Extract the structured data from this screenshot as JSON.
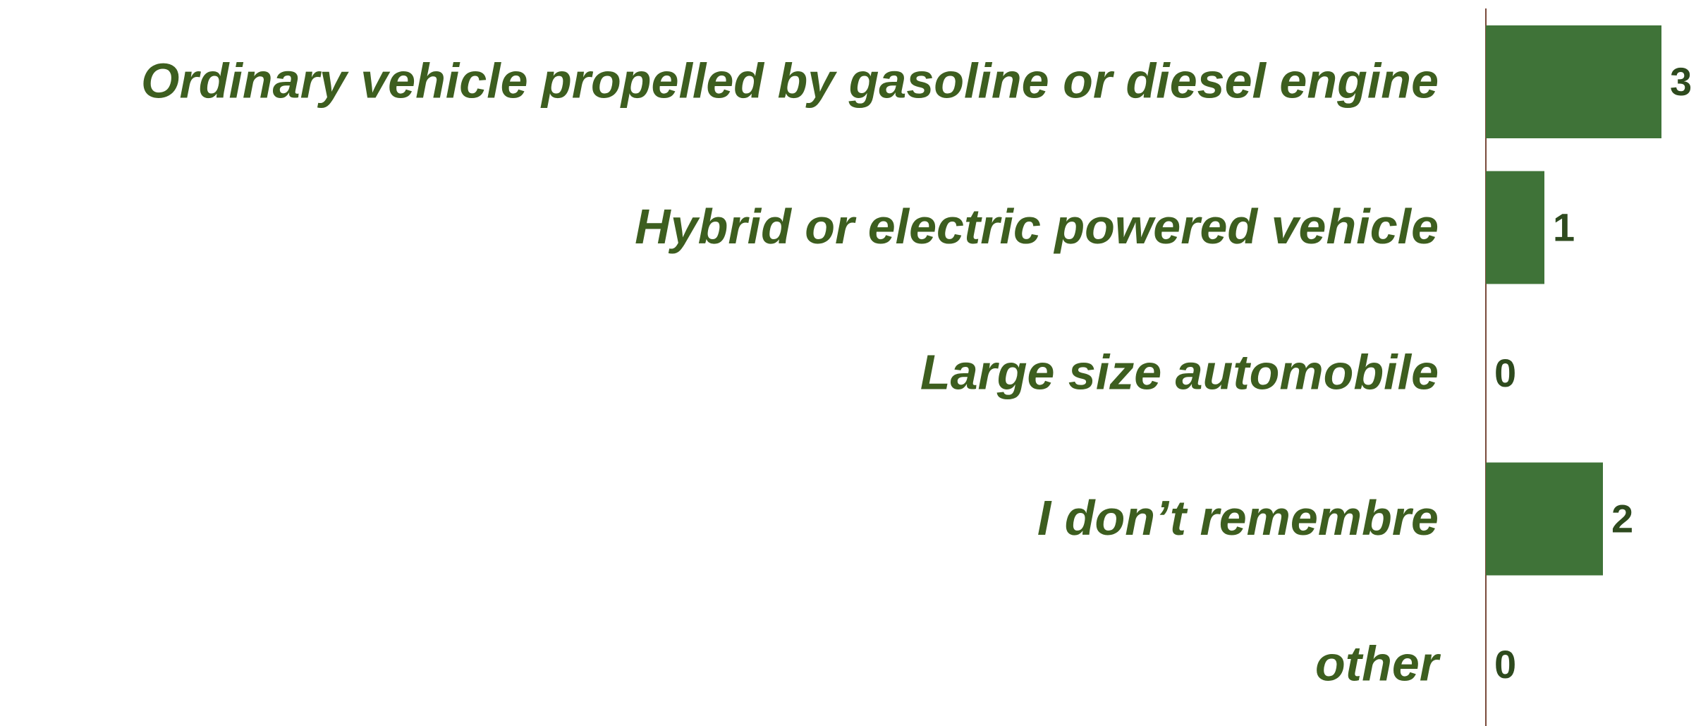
{
  "chart_data": {
    "type": "bar",
    "orientation": "horizontal",
    "categories": [
      "Ordinary vehicle propelled by gasoline or diesel engine",
      "Hybrid or electric powered vehicle",
      "Large size automobile",
      "I don’t remembre",
      "other"
    ],
    "values": [
      3,
      1,
      0,
      2,
      0
    ],
    "color": "#3f7338"
  }
}
